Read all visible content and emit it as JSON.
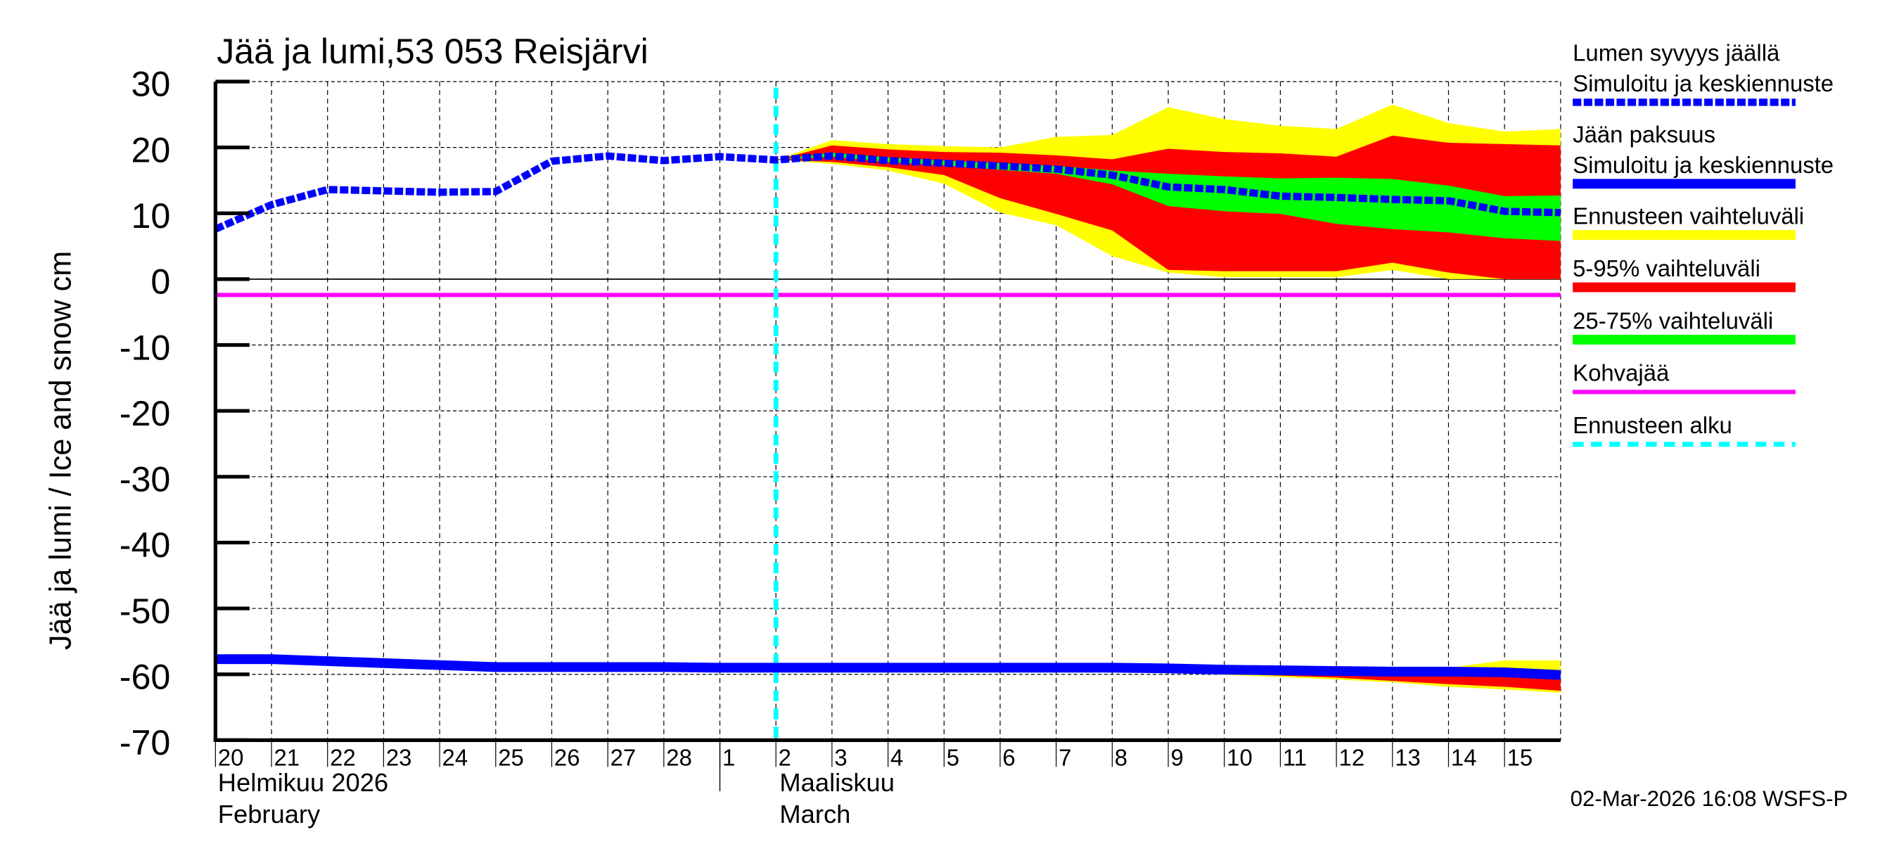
{
  "chart_data": {
    "type": "area",
    "title": "Jää ja lumi,53 053 Reisjärvi",
    "ylabel": "Jää ja lumi / Ice and snow    cm",
    "ylim": [
      -70,
      30
    ],
    "yticks": [
      30,
      20,
      10,
      0,
      -10,
      -20,
      -30,
      -40,
      -50,
      -60,
      -70
    ],
    "xlim": [
      "2026-02-20",
      "2026-03-16"
    ],
    "xtick_labels": [
      "20",
      "21",
      "22",
      "23",
      "24",
      "25",
      "26",
      "27",
      "28",
      "1",
      "2",
      "3",
      "4",
      "5",
      "6",
      "7",
      "8",
      "9",
      "10",
      "11",
      "12",
      "13",
      "14",
      "15"
    ],
    "month_labels": [
      {
        "line1": "Helmikuu  2026",
        "line2": "February"
      },
      {
        "line1": "Maaliskuu",
        "line2": "March"
      }
    ],
    "grid": true,
    "legend_placement": "right",
    "forecast_start": "2026-03-02",
    "kohvajaa_level": -2.4,
    "dates": [
      "2026-02-20",
      "2026-02-21",
      "2026-02-22",
      "2026-02-23",
      "2026-02-24",
      "2026-02-25",
      "2026-02-26",
      "2026-02-27",
      "2026-02-28",
      "2026-03-01",
      "2026-03-02",
      "2026-03-03",
      "2026-03-04",
      "2026-03-05",
      "2026-03-06",
      "2026-03-07",
      "2026-03-08",
      "2026-03-09",
      "2026-03-10",
      "2026-03-11",
      "2026-03-12",
      "2026-03-13",
      "2026-03-14",
      "2026-03-15",
      "2026-03-16"
    ],
    "snow_depth": [
      7.6,
      11.3,
      13.6,
      13.4,
      13.2,
      13.3,
      17.9,
      18.7,
      18.0,
      18.6,
      18.1,
      18.7,
      18.0,
      17.6,
      17.2,
      16.7,
      15.8,
      14.0,
      13.6,
      12.6,
      12.4,
      12.1,
      11.9,
      10.3,
      10.1
    ],
    "ice_thickness": [
      -57.7,
      -57.7,
      -58.0,
      -58.3,
      -58.6,
      -58.9,
      -58.9,
      -58.9,
      -58.9,
      -59.0,
      -59.0,
      -59.0,
      -59.0,
      -59.0,
      -59.0,
      -59.0,
      -59.0,
      -59.1,
      -59.3,
      -59.4,
      -59.5,
      -59.6,
      -59.6,
      -59.7,
      -60.1
    ],
    "forecast_dates": [
      "2026-03-02",
      "2026-03-03",
      "2026-03-04",
      "2026-03-05",
      "2026-03-06",
      "2026-03-07",
      "2026-03-08",
      "2026-03-09",
      "2026-03-10",
      "2026-03-11",
      "2026-03-12",
      "2026-03-13",
      "2026-03-14",
      "2026-03-15",
      "2026-03-16"
    ],
    "snow_bands": {
      "max": [
        18.1,
        21.1,
        20.5,
        20.2,
        20.0,
        21.6,
        21.9,
        26.1,
        24.3,
        23.3,
        22.8,
        26.5,
        23.7,
        22.4,
        22.8
      ],
      "p95": [
        18.1,
        20.3,
        19.7,
        19.3,
        19.2,
        18.8,
        18.2,
        19.8,
        19.3,
        19.1,
        18.6,
        21.8,
        20.7,
        20.5,
        20.3
      ],
      "p75": [
        18.1,
        19.2,
        18.5,
        18.0,
        17.6,
        17.2,
        16.5,
        16.0,
        15.6,
        15.3,
        15.4,
        15.2,
        14.2,
        12.6,
        12.7
      ],
      "p25": [
        18.1,
        18.6,
        17.8,
        17.3,
        16.6,
        16.0,
        14.4,
        11.1,
        10.3,
        9.9,
        8.4,
        7.6,
        7.1,
        6.2,
        5.8
      ],
      "p5": [
        18.1,
        17.8,
        17.0,
        15.8,
        12.3,
        9.9,
        7.4,
        1.4,
        1.2,
        1.2,
        1.2,
        2.5,
        1.0,
        0.0,
        0.0
      ],
      "min": [
        18.1,
        17.5,
        16.5,
        14.5,
        10.1,
        8.2,
        3.5,
        1.0,
        0.3,
        0.3,
        0.3,
        1.4,
        0.0,
        0.0,
        0.0
      ]
    },
    "ice_bands": {
      "max": [
        -59.0,
        -59.0,
        -59.0,
        -59.0,
        -59.0,
        -59.0,
        -59.0,
        -59.1,
        -59.3,
        -59.4,
        -59.5,
        -59.4,
        -59.0,
        -57.9,
        -57.9
      ],
      "p95": [
        -59.0,
        -59.0,
        -59.0,
        -59.0,
        -59.0,
        -59.0,
        -59.0,
        -59.1,
        -59.3,
        -59.4,
        -59.5,
        -59.6,
        -59.6,
        -59.5,
        -59.6
      ],
      "p75": [
        -59.0,
        -59.0,
        -59.0,
        -59.0,
        -59.0,
        -59.0,
        -59.0,
        -59.1,
        -59.3,
        -59.4,
        -59.5,
        -59.6,
        -59.6,
        -59.7,
        -60.0
      ],
      "p25": [
        -59.0,
        -59.0,
        -59.0,
        -59.0,
        -59.0,
        -59.0,
        -59.0,
        -59.1,
        -59.3,
        -59.4,
        -59.5,
        -59.6,
        -59.6,
        -59.8,
        -60.2
      ],
      "p5": [
        -59.0,
        -59.0,
        -59.0,
        -59.0,
        -59.0,
        -59.0,
        -59.2,
        -59.5,
        -59.9,
        -60.2,
        -60.5,
        -61.0,
        -61.5,
        -61.9,
        -62.5
      ],
      "min": [
        -59.0,
        -59.0,
        -59.0,
        -59.0,
        -59.0,
        -59.0,
        -59.4,
        -59.6,
        -60.1,
        -60.4,
        -60.8,
        -61.2,
        -61.9,
        -62.3,
        -62.8
      ]
    },
    "legend": [
      {
        "label1": "Lumen syvyys jäällä",
        "label2": "Simuloitu ja keskiennuste",
        "color": "#0000ff",
        "style": "dashed"
      },
      {
        "label1": "Jään paksuus",
        "label2": "Simuloitu ja keskiennuste",
        "color": "#0000ff",
        "style": "solid"
      },
      {
        "label1": "Ennusteen vaihteluväli",
        "color": "#ffff00",
        "style": "band"
      },
      {
        "label1": "5-95% vaihteluväli",
        "color": "#ff0000",
        "style": "band"
      },
      {
        "label1": "25-75% vaihteluväli",
        "color": "#00ff00",
        "style": "band"
      },
      {
        "label1": "Kohvajää",
        "color": "#ff00ff",
        "style": "solid"
      },
      {
        "label1": "Ennusteen alku",
        "color": "#00ffff",
        "style": "dashed"
      }
    ],
    "colors": {
      "snow": "#0000ff",
      "ice": "#0000ff",
      "range": "#ffff00",
      "p5_95": "#ff0000",
      "p25_75": "#00ff00",
      "kohvajaa": "#ff00ff",
      "forecast_start": "#00ffff"
    }
  },
  "footer": {
    "timestamp": "02-Mar-2026 16:08 WSFS-P"
  }
}
